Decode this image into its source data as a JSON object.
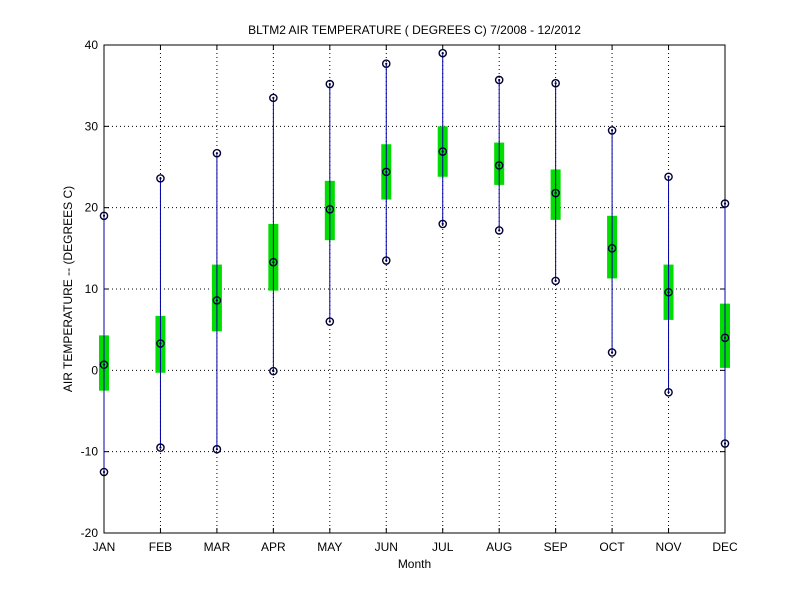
{
  "chart_data": {
    "type": "boxplot",
    "title": "BLTM2  AIR TEMPERATURE ( DEGREES C) 7/2008 - 12/2012",
    "xlabel": "Month",
    "ylabel": "AIR TEMPERATURE -- (DEGREES C)",
    "ylim": [
      -20,
      40
    ],
    "yticks": [
      -20,
      -10,
      0,
      10,
      20,
      30,
      40
    ],
    "grid": true,
    "categories": [
      "JAN",
      "FEB",
      "MAR",
      "APR",
      "MAY",
      "JUN",
      "JUL",
      "AUG",
      "SEP",
      "OCT",
      "NOV",
      "DEC"
    ],
    "min": [
      -12.5,
      -9.5,
      -9.7,
      -0.1,
      6.0,
      13.5,
      18.0,
      17.2,
      11.0,
      2.2,
      -2.7,
      -9.0
    ],
    "q1": [
      -2.5,
      -0.3,
      4.8,
      9.8,
      16.0,
      21.0,
      23.8,
      22.8,
      18.5,
      11.3,
      6.2,
      0.3
    ],
    "median": [
      0.7,
      3.3,
      8.6,
      13.3,
      19.8,
      24.4,
      26.9,
      25.2,
      21.8,
      15.0,
      9.6,
      4.0
    ],
    "q3": [
      4.3,
      6.7,
      13.0,
      18.0,
      23.3,
      27.8,
      30.0,
      28.0,
      24.7,
      19.0,
      13.0,
      8.2
    ],
    "max": [
      19.0,
      23.6,
      26.7,
      33.5,
      35.2,
      37.7,
      39.0,
      35.7,
      35.3,
      29.5,
      23.8,
      20.5
    ],
    "colors": {
      "whisker": "#0000a8",
      "box": "#00dd00",
      "marker": "#000033",
      "axis": "#000000",
      "grid": "#000000"
    }
  }
}
